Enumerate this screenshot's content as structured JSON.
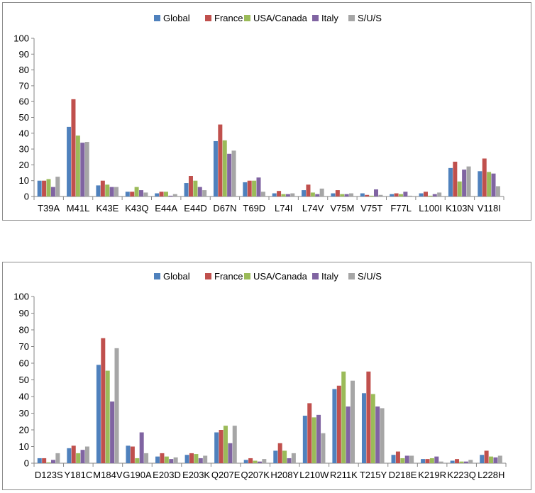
{
  "colors": {
    "Global": "#4f81bd",
    "France": "#c0504d",
    "USA/Canada": "#9bbb59",
    "Italy": "#8064a2",
    "S/U/S": "#a6a6a6",
    "axis": "#868686",
    "text": "#000000"
  },
  "chart_data": [
    {
      "type": "bar",
      "title": "",
      "xlabel": "",
      "ylabel": "",
      "ylim": [
        0,
        100
      ],
      "yticks": [
        0,
        10,
        20,
        30,
        40,
        50,
        60,
        70,
        80,
        90,
        100
      ],
      "grid": false,
      "legend_position": "top",
      "categories": [
        "T39A",
        "M41L",
        "K43E",
        "K43Q",
        "E44A",
        "E44D",
        "D67N",
        "T69D",
        "L74I",
        "L74V",
        "V75M",
        "V75T",
        "F77L",
        "L100I",
        "K103N",
        "V118I"
      ],
      "series": [
        {
          "name": "Global",
          "values": [
            10,
            44,
            7,
            3,
            2,
            8.5,
            35,
            9,
            2,
            4,
            2,
            2,
            1.5,
            2,
            18,
            16
          ]
        },
        {
          "name": "France",
          "values": [
            10,
            61.5,
            10,
            3,
            3,
            13,
            45.5,
            10,
            3.5,
            7.5,
            4,
            1,
            2,
            3,
            22,
            24
          ]
        },
        {
          "name": "USA/Canada",
          "values": [
            11,
            38.5,
            7.5,
            6,
            3,
            10,
            35.5,
            10,
            1.5,
            2.5,
            1.5,
            0.5,
            1.5,
            0.5,
            9.5,
            15.5
          ]
        },
        {
          "name": "Italy",
          "values": [
            6,
            34,
            6,
            4,
            0.5,
            6,
            27,
            12,
            1.5,
            1.5,
            1.5,
            4.5,
            3,
            1.5,
            17,
            14.5
          ]
        },
        {
          "name": "S/U/S",
          "values": [
            12.5,
            34.5,
            6,
            2.5,
            1.5,
            4,
            29,
            3,
            2,
            5,
            2,
            1,
            0.5,
            2.5,
            19,
            6.5
          ]
        }
      ]
    },
    {
      "type": "bar",
      "title": "",
      "xlabel": "",
      "ylabel": "",
      "ylim": [
        0,
        100
      ],
      "yticks": [
        0,
        10,
        20,
        30,
        40,
        50,
        60,
        70,
        80,
        90,
        100
      ],
      "grid": false,
      "legend_position": "top",
      "categories": [
        "D123S",
        "Y181C",
        "M184V",
        "G190A",
        "E203D",
        "E203K",
        "Q207E",
        "Q207K",
        "H208Y",
        "L210W",
        "R211K",
        "T215Y",
        "D218E",
        "K219R",
        "K223Q",
        "L228H"
      ],
      "series": [
        {
          "name": "Global",
          "values": [
            3,
            9,
            59,
            10.5,
            4,
            5,
            18.5,
            2,
            7.5,
            28.5,
            44.5,
            42,
            5,
            2.5,
            1.5,
            5
          ]
        },
        {
          "name": "France",
          "values": [
            3,
            10.5,
            75,
            10,
            6,
            6,
            20,
            3,
            12,
            36,
            46.5,
            55,
            7,
            2.5,
            2.5,
            7.5
          ]
        },
        {
          "name": "USA/Canada",
          "values": [
            0.5,
            6,
            55.5,
            3,
            4,
            5.5,
            22.5,
            1.5,
            7.5,
            27.5,
            55,
            41.5,
            3,
            3,
            1,
            4
          ]
        },
        {
          "name": "Italy",
          "values": [
            2,
            8,
            37,
            18.5,
            2.5,
            3,
            12,
            1,
            3,
            29,
            34,
            34,
            4.5,
            4,
            1,
            3.5
          ]
        },
        {
          "name": "S/U/S",
          "values": [
            6,
            10,
            69,
            6,
            3.5,
            4.5,
            22.5,
            2.5,
            6,
            18,
            49.5,
            33,
            4.5,
            1,
            2,
            4.5
          ]
        }
      ]
    }
  ]
}
